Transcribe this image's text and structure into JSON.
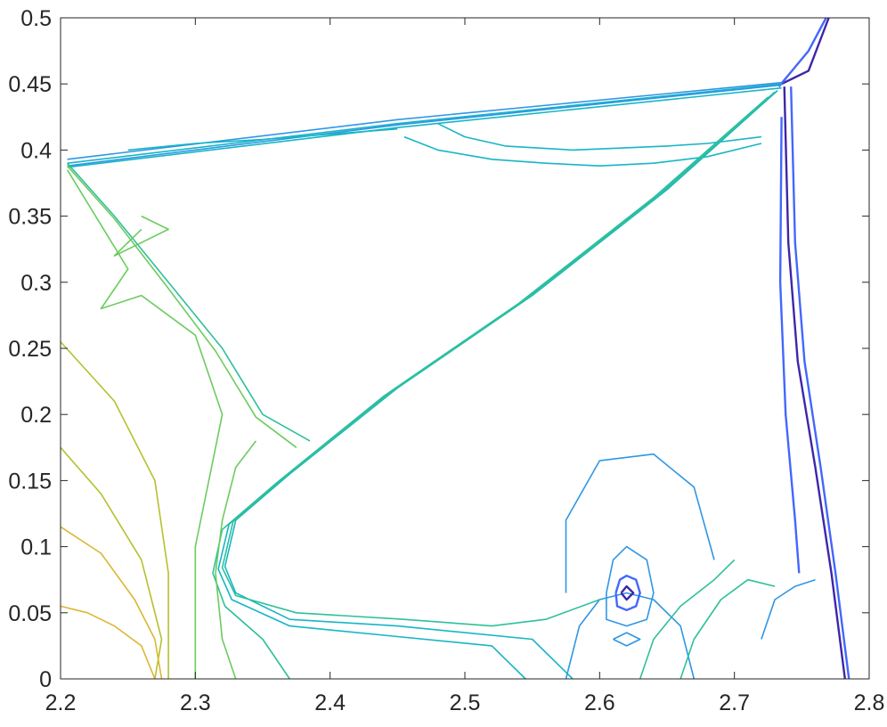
{
  "chart_data": {
    "type": "contour",
    "title": "",
    "xlabel": "",
    "ylabel": "",
    "xlim": [
      2.2,
      2.8
    ],
    "ylim": [
      0,
      0.5
    ],
    "xticks": [
      "2.2",
      "2.3",
      "2.4",
      "2.5",
      "2.6",
      "2.7",
      "2.8"
    ],
    "yticks": [
      "0",
      "0.05",
      "0.1",
      "0.15",
      "0.2",
      "0.25",
      "0.3",
      "0.35",
      "0.4",
      "0.45",
      "0.5"
    ],
    "grid": false,
    "colormap": "parula",
    "colors": {
      "axis": "#262626",
      "level_colors": [
        "#3e26a8",
        "#4367fd",
        "#2f96e5",
        "#17b5c6",
        "#2dc09b",
        "#6ccb5f",
        "#b6c02f",
        "#ddb631"
      ]
    },
    "lines": [
      {
        "level": 0,
        "points": [
          [
            2.735,
            0.45
          ],
          [
            2.755,
            0.46
          ],
          [
            2.77,
            0.5
          ]
        ]
      },
      {
        "level": 0,
        "points": [
          [
            2.737,
            0.448
          ],
          [
            2.74,
            0.33
          ],
          [
            2.747,
            0.24
          ],
          [
            2.76,
            0.16
          ],
          [
            2.772,
            0.08
          ],
          [
            2.782,
            0.0
          ]
        ]
      },
      {
        "level": 1,
        "points": [
          [
            2.733,
            0.448
          ],
          [
            2.755,
            0.475
          ],
          [
            2.768,
            0.5
          ]
        ]
      },
      {
        "level": 1,
        "points": [
          [
            2.742,
            0.448
          ],
          [
            2.745,
            0.33
          ],
          [
            2.752,
            0.24
          ],
          [
            2.764,
            0.16
          ],
          [
            2.775,
            0.08
          ],
          [
            2.785,
            0.0
          ]
        ]
      },
      {
        "level": 1,
        "points": [
          [
            2.735,
            0.425
          ],
          [
            2.734,
            0.3
          ],
          [
            2.738,
            0.2
          ],
          [
            2.745,
            0.12
          ],
          [
            2.748,
            0.08
          ]
        ]
      },
      {
        "level": 2,
        "points": [
          [
            2.72,
            0.03
          ],
          [
            2.73,
            0.06
          ],
          [
            2.745,
            0.07
          ],
          [
            2.76,
            0.075
          ]
        ]
      },
      {
        "level": 2,
        "points": [
          [
            2.575,
            0.065
          ],
          [
            2.575,
            0.12
          ],
          [
            2.6,
            0.165
          ],
          [
            2.64,
            0.17
          ],
          [
            2.67,
            0.145
          ],
          [
            2.685,
            0.09
          ]
        ]
      },
      {
        "level": 2,
        "points": [
          [
            2.575,
            0.0
          ],
          [
            2.585,
            0.04
          ],
          [
            2.6,
            0.06
          ],
          [
            2.62,
            0.065
          ],
          [
            2.64,
            0.06
          ],
          [
            2.66,
            0.04
          ],
          [
            2.67,
            0.0
          ]
        ]
      },
      {
        "level": 2,
        "points": [
          [
            2.605,
            0.065
          ],
          [
            2.61,
            0.09
          ],
          [
            2.62,
            0.1
          ],
          [
            2.635,
            0.09
          ],
          [
            2.64,
            0.065
          ],
          [
            2.635,
            0.045
          ],
          [
            2.62,
            0.04
          ],
          [
            2.605,
            0.045
          ],
          [
            2.605,
            0.065
          ]
        ]
      },
      {
        "level": 1,
        "points": [
          [
            2.612,
            0.065
          ],
          [
            2.615,
            0.075
          ],
          [
            2.62,
            0.078
          ],
          [
            2.627,
            0.075
          ],
          [
            2.63,
            0.065
          ],
          [
            2.627,
            0.055
          ],
          [
            2.62,
            0.052
          ],
          [
            2.613,
            0.055
          ],
          [
            2.612,
            0.065
          ]
        ]
      },
      {
        "level": 0,
        "points": [
          [
            2.616,
            0.065
          ],
          [
            2.62,
            0.07
          ],
          [
            2.625,
            0.065
          ],
          [
            2.62,
            0.06
          ],
          [
            2.616,
            0.065
          ]
        ]
      },
      {
        "level": 2,
        "points": [
          [
            2.61,
            0.03
          ],
          [
            2.62,
            0.035
          ],
          [
            2.63,
            0.03
          ],
          [
            2.62,
            0.025
          ],
          [
            2.61,
            0.03
          ]
        ]
      },
      {
        "level": 3,
        "points": [
          [
            2.205,
            0.39
          ],
          [
            2.45,
            0.42
          ],
          [
            2.735,
            0.45
          ]
        ]
      },
      {
        "level": 2,
        "points": [
          [
            2.205,
            0.393
          ],
          [
            2.45,
            0.423
          ],
          [
            2.735,
            0.451
          ]
        ]
      },
      {
        "level": 3,
        "points": [
          [
            2.205,
            0.387
          ],
          [
            2.45,
            0.417
          ],
          [
            2.735,
            0.447
          ]
        ]
      },
      {
        "level": 2,
        "points": [
          [
            2.205,
            0.388
          ],
          [
            2.45,
            0.419
          ],
          [
            2.733,
            0.449
          ]
        ]
      },
      {
        "level": 3,
        "points": [
          [
            2.25,
            0.4
          ],
          [
            2.3,
            0.405
          ],
          [
            2.35,
            0.408
          ],
          [
            2.4,
            0.412
          ],
          [
            2.45,
            0.416
          ]
        ]
      },
      {
        "level": 3,
        "points": [
          [
            2.48,
            0.42
          ],
          [
            2.5,
            0.41
          ],
          [
            2.53,
            0.403
          ],
          [
            2.58,
            0.4
          ],
          [
            2.65,
            0.403
          ],
          [
            2.68,
            0.405
          ],
          [
            2.72,
            0.41
          ]
        ]
      },
      {
        "level": 3,
        "points": [
          [
            2.455,
            0.41
          ],
          [
            2.48,
            0.4
          ],
          [
            2.52,
            0.393
          ],
          [
            2.56,
            0.39
          ],
          [
            2.6,
            0.388
          ],
          [
            2.64,
            0.39
          ],
          [
            2.68,
            0.395
          ],
          [
            2.72,
            0.405
          ]
        ]
      },
      {
        "level": 3,
        "points": [
          [
            2.732,
            0.445
          ],
          [
            2.65,
            0.37
          ],
          [
            2.55,
            0.29
          ],
          [
            2.45,
            0.22
          ],
          [
            2.37,
            0.155
          ],
          [
            2.33,
            0.12
          ],
          [
            2.322,
            0.085
          ],
          [
            2.33,
            0.065
          ],
          [
            2.37,
            0.045
          ],
          [
            2.45,
            0.04
          ],
          [
            2.55,
            0.03
          ],
          [
            2.58,
            0.0
          ]
        ]
      },
      {
        "level": 3,
        "points": [
          [
            2.728,
            0.442
          ],
          [
            2.645,
            0.367
          ],
          [
            2.545,
            0.287
          ],
          [
            2.445,
            0.217
          ],
          [
            2.365,
            0.152
          ],
          [
            2.325,
            0.117
          ],
          [
            2.317,
            0.083
          ],
          [
            2.327,
            0.06
          ],
          [
            2.37,
            0.04
          ],
          [
            2.45,
            0.032
          ],
          [
            2.52,
            0.025
          ],
          [
            2.545,
            0.0
          ]
        ]
      },
      {
        "level": 4,
        "points": [
          [
            2.725,
            0.44
          ],
          [
            2.64,
            0.364
          ],
          [
            2.54,
            0.284
          ],
          [
            2.44,
            0.214
          ],
          [
            2.36,
            0.148
          ],
          [
            2.32,
            0.113
          ],
          [
            2.313,
            0.08
          ],
          [
            2.322,
            0.055
          ],
          [
            2.35,
            0.03
          ],
          [
            2.37,
            0.0
          ]
        ]
      },
      {
        "level": 4,
        "points": [
          [
            2.73,
            0.444
          ],
          [
            2.648,
            0.369
          ],
          [
            2.548,
            0.289
          ],
          [
            2.448,
            0.219
          ],
          [
            2.368,
            0.154
          ],
          [
            2.328,
            0.119
          ],
          [
            2.32,
            0.084
          ],
          [
            2.33,
            0.063
          ],
          [
            2.375,
            0.05
          ],
          [
            2.455,
            0.045
          ],
          [
            2.52,
            0.04
          ],
          [
            2.56,
            0.045
          ],
          [
            2.6,
            0.06
          ]
        ]
      },
      {
        "level": 4,
        "points": [
          [
            2.66,
            0.0
          ],
          [
            2.67,
            0.03
          ],
          [
            2.69,
            0.06
          ],
          [
            2.71,
            0.075
          ],
          [
            2.73,
            0.07
          ]
        ]
      },
      {
        "level": 4,
        "points": [
          [
            2.63,
            0.0
          ],
          [
            2.64,
            0.03
          ],
          [
            2.66,
            0.055
          ],
          [
            2.685,
            0.075
          ],
          [
            2.7,
            0.09
          ]
        ]
      },
      {
        "level": 4,
        "points": [
          [
            2.205,
            0.39
          ],
          [
            2.24,
            0.35
          ],
          [
            2.28,
            0.3
          ],
          [
            2.32,
            0.25
          ],
          [
            2.35,
            0.2
          ],
          [
            2.385,
            0.18
          ]
        ]
      },
      {
        "level": 5,
        "points": [
          [
            2.205,
            0.388
          ],
          [
            2.24,
            0.348
          ],
          [
            2.278,
            0.298
          ],
          [
            2.315,
            0.248
          ],
          [
            2.345,
            0.198
          ],
          [
            2.375,
            0.175
          ]
        ]
      },
      {
        "level": 5,
        "points": [
          [
            2.205,
            0.385
          ],
          [
            2.25,
            0.31
          ],
          [
            2.23,
            0.28
          ],
          [
            2.26,
            0.29
          ],
          [
            2.3,
            0.26
          ],
          [
            2.32,
            0.2
          ],
          [
            2.31,
            0.15
          ],
          [
            2.3,
            0.1
          ],
          [
            2.3,
            0.0
          ]
        ]
      },
      {
        "level": 5,
        "points": [
          [
            2.345,
            0.18
          ],
          [
            2.33,
            0.16
          ],
          [
            2.32,
            0.12
          ],
          [
            2.315,
            0.08
          ],
          [
            2.32,
            0.03
          ],
          [
            2.33,
            0.0
          ]
        ]
      },
      {
        "level": 5,
        "points": [
          [
            2.26,
            0.35
          ],
          [
            2.28,
            0.34
          ],
          [
            2.26,
            0.33
          ],
          [
            2.24,
            0.32
          ],
          [
            2.26,
            0.34
          ]
        ]
      },
      {
        "level": 6,
        "points": [
          [
            2.2,
            0.255
          ],
          [
            2.24,
            0.21
          ],
          [
            2.27,
            0.15
          ],
          [
            2.28,
            0.08
          ],
          [
            2.28,
            0.0
          ]
        ]
      },
      {
        "level": 6,
        "points": [
          [
            2.2,
            0.175
          ],
          [
            2.23,
            0.14
          ],
          [
            2.26,
            0.09
          ],
          [
            2.275,
            0.03
          ],
          [
            2.27,
            0.0
          ]
        ]
      },
      {
        "level": 7,
        "points": [
          [
            2.2,
            0.115
          ],
          [
            2.23,
            0.095
          ],
          [
            2.255,
            0.06
          ],
          [
            2.27,
            0.03
          ],
          [
            2.275,
            0.0
          ]
        ]
      },
      {
        "level": 7,
        "points": [
          [
            2.2,
            0.055
          ],
          [
            2.22,
            0.05
          ],
          [
            2.24,
            0.04
          ],
          [
            2.26,
            0.025
          ],
          [
            2.27,
            0.0
          ]
        ]
      }
    ]
  }
}
